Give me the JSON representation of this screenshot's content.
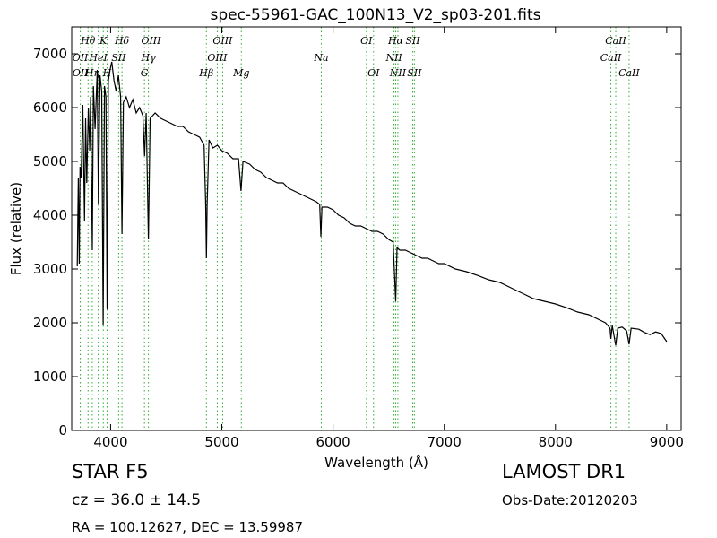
{
  "chart_data": {
    "type": "line",
    "title": "spec-55961-GAC_100N13_V2_sp03-201.fits",
    "xlabel": "Wavelength (Å)",
    "ylabel": "Flux (relative)",
    "xlim": [
      3650,
      9130
    ],
    "ylim": [
      0,
      7500
    ],
    "xticks": [
      4000,
      5000,
      6000,
      7000,
      8000,
      9000
    ],
    "yticks": [
      0,
      1000,
      2000,
      3000,
      4000,
      5000,
      6000,
      7000
    ],
    "series_color": "#000000",
    "line_marker_color": "#33aa33",
    "spectrum": [
      [
        3700,
        3050
      ],
      [
        3710,
        4700
      ],
      [
        3718,
        3100
      ],
      [
        3725,
        4900
      ],
      [
        3735,
        4700
      ],
      [
        3750,
        6050
      ],
      [
        3765,
        3900
      ],
      [
        3775,
        5800
      ],
      [
        3785,
        4600
      ],
      [
        3800,
        6000
      ],
      [
        3812,
        5200
      ],
      [
        3820,
        6200
      ],
      [
        3835,
        3350
      ],
      [
        3845,
        6400
      ],
      [
        3860,
        5600
      ],
      [
        3880,
        6700
      ],
      [
        3890,
        4200
      ],
      [
        3905,
        6600
      ],
      [
        3920,
        6300
      ],
      [
        3933,
        1950
      ],
      [
        3945,
        6400
      ],
      [
        3958,
        6200
      ],
      [
        3968,
        2250
      ],
      [
        3980,
        6500
      ],
      [
        3995,
        6700
      ],
      [
        4010,
        6850
      ],
      [
        4030,
        6500
      ],
      [
        4050,
        6300
      ],
      [
        4070,
        6600
      ],
      [
        4090,
        6200
      ],
      [
        4102,
        3650
      ],
      [
        4115,
        6100
      ],
      [
        4140,
        6200
      ],
      [
        4170,
        6000
      ],
      [
        4200,
        6150
      ],
      [
        4230,
        5900
      ],
      [
        4260,
        6000
      ],
      [
        4290,
        5850
      ],
      [
        4305,
        5100
      ],
      [
        4320,
        5900
      ],
      [
        4340,
        3550
      ],
      [
        4355,
        5800
      ],
      [
        4400,
        5900
      ],
      [
        4450,
        5800
      ],
      [
        4500,
        5750
      ],
      [
        4550,
        5700
      ],
      [
        4600,
        5650
      ],
      [
        4650,
        5650
      ],
      [
        4700,
        5550
      ],
      [
        4750,
        5500
      ],
      [
        4800,
        5450
      ],
      [
        4840,
        5300
      ],
      [
        4855,
        4200
      ],
      [
        4861,
        3200
      ],
      [
        4868,
        4200
      ],
      [
        4885,
        5400
      ],
      [
        4920,
        5250
      ],
      [
        4960,
        5300
      ],
      [
        5000,
        5200
      ],
      [
        5050,
        5150
      ],
      [
        5100,
        5050
      ],
      [
        5150,
        5050
      ],
      [
        5172,
        4450
      ],
      [
        5190,
        5000
      ],
      [
        5250,
        4950
      ],
      [
        5300,
        4850
      ],
      [
        5350,
        4800
      ],
      [
        5400,
        4700
      ],
      [
        5450,
        4650
      ],
      [
        5500,
        4600
      ],
      [
        5550,
        4600
      ],
      [
        5600,
        4500
      ],
      [
        5650,
        4450
      ],
      [
        5700,
        4400
      ],
      [
        5750,
        4350
      ],
      [
        5800,
        4300
      ],
      [
        5850,
        4250
      ],
      [
        5880,
        4200
      ],
      [
        5890,
        3600
      ],
      [
        5900,
        4150
      ],
      [
        5950,
        4150
      ],
      [
        6000,
        4100
      ],
      [
        6050,
        4000
      ],
      [
        6100,
        3950
      ],
      [
        6150,
        3850
      ],
      [
        6200,
        3800
      ],
      [
        6250,
        3800
      ],
      [
        6300,
        3750
      ],
      [
        6350,
        3700
      ],
      [
        6400,
        3700
      ],
      [
        6450,
        3650
      ],
      [
        6500,
        3550
      ],
      [
        6540,
        3500
      ],
      [
        6563,
        2400
      ],
      [
        6575,
        3400
      ],
      [
        6600,
        3350
      ],
      [
        6650,
        3350
      ],
      [
        6700,
        3300
      ],
      [
        6750,
        3250
      ],
      [
        6800,
        3200
      ],
      [
        6850,
        3200
      ],
      [
        6900,
        3150
      ],
      [
        6950,
        3100
      ],
      [
        7000,
        3100
      ],
      [
        7100,
        3000
      ],
      [
        7200,
        2950
      ],
      [
        7300,
        2880
      ],
      [
        7400,
        2800
      ],
      [
        7500,
        2750
      ],
      [
        7600,
        2650
      ],
      [
        7700,
        2550
      ],
      [
        7800,
        2450
      ],
      [
        7900,
        2400
      ],
      [
        8000,
        2350
      ],
      [
        8100,
        2280
      ],
      [
        8200,
        2200
      ],
      [
        8300,
        2150
      ],
      [
        8400,
        2050
      ],
      [
        8450,
        2000
      ],
      [
        8490,
        1900
      ],
      [
        8498,
        1700
      ],
      [
        8510,
        1950
      ],
      [
        8542,
        1580
      ],
      [
        8560,
        1900
      ],
      [
        8600,
        1920
      ],
      [
        8640,
        1850
      ],
      [
        8662,
        1600
      ],
      [
        8680,
        1900
      ],
      [
        8750,
        1880
      ],
      [
        8800,
        1820
      ],
      [
        8850,
        1780
      ],
      [
        8900,
        1830
      ],
      [
        8950,
        1800
      ],
      [
        9000,
        1650
      ]
    ],
    "emission_lines": [
      {
        "name": "OII",
        "wavelength": 3727
      },
      {
        "name": "Hθ",
        "wavelength": 3797
      },
      {
        "name": "Hη",
        "wavelength": 3835
      },
      {
        "name": "HeI",
        "wavelength": 3889
      },
      {
        "name": "SII",
        "wavelength": 4072
      },
      {
        "name": "Hδ",
        "wavelength": 4102
      },
      {
        "name": "Hγ",
        "wavelength": 4340
      },
      {
        "name": "OIII",
        "wavelength": 4363
      },
      {
        "name": "Hβ",
        "wavelength": 4861
      },
      {
        "name": "OIII",
        "wavelength": 4959
      },
      {
        "name": "OIII",
        "wavelength": 5007
      },
      {
        "name": "OI",
        "wavelength": 6300
      },
      {
        "name": "OI",
        "wavelength": 6364
      },
      {
        "name": "NII",
        "wavelength": 6548
      },
      {
        "name": "Hα",
        "wavelength": 6563
      },
      {
        "name": "NII",
        "wavelength": 6583
      },
      {
        "name": "SII",
        "wavelength": 6716
      },
      {
        "name": "SII",
        "wavelength": 6731
      }
    ],
    "absorption_lines": [
      {
        "name": "K",
        "wavelength": 3934
      },
      {
        "name": "H",
        "wavelength": 3968
      },
      {
        "name": "G",
        "wavelength": 4304
      },
      {
        "name": "Mg",
        "wavelength": 5175
      },
      {
        "name": "Na",
        "wavelength": 5894
      },
      {
        "name": "CaII",
        "wavelength": 8498
      },
      {
        "name": "CaII",
        "wavelength": 8542
      },
      {
        "name": "CaII",
        "wavelength": 8662
      }
    ],
    "line_labels": [
      {
        "text": "Hθ",
        "wavelength": 3797,
        "row": 1
      },
      {
        "text": "K",
        "wavelength": 3934,
        "row": 1
      },
      {
        "text": "Hδ",
        "wavelength": 4102,
        "row": 1
      },
      {
        "text": "OIII",
        "wavelength": 4363,
        "row": 1
      },
      {
        "text": "OIII",
        "wavelength": 5007,
        "row": 1
      },
      {
        "text": "OI",
        "wavelength": 6300,
        "row": 1
      },
      {
        "text": "Hα",
        "wavelength": 6563,
        "row": 1
      },
      {
        "text": "SII",
        "wavelength": 6716,
        "row": 1
      },
      {
        "text": "CaII",
        "wavelength": 8542,
        "row": 1
      },
      {
        "text": "OII",
        "wavelength": 3727,
        "row": 2
      },
      {
        "text": "HeI",
        "wavelength": 3889,
        "row": 2
      },
      {
        "text": "SII",
        "wavelength": 4072,
        "row": 2
      },
      {
        "text": "Hγ",
        "wavelength": 4340,
        "row": 2
      },
      {
        "text": "OIII",
        "wavelength": 4959,
        "row": 2
      },
      {
        "text": "Na",
        "wavelength": 5894,
        "row": 2
      },
      {
        "text": "NII",
        "wavelength": 6548,
        "row": 2
      },
      {
        "text": "CaII",
        "wavelength": 8498,
        "row": 2
      },
      {
        "text": "OII",
        "wavelength": 3727,
        "row": 3
      },
      {
        "text": "Hη",
        "wavelength": 3835,
        "row": 3
      },
      {
        "text": "H",
        "wavelength": 3968,
        "row": 3
      },
      {
        "text": "G",
        "wavelength": 4304,
        "row": 3
      },
      {
        "text": "Hβ",
        "wavelength": 4861,
        "row": 3
      },
      {
        "text": "Mg",
        "wavelength": 5175,
        "row": 3
      },
      {
        "text": "OI",
        "wavelength": 6364,
        "row": 3
      },
      {
        "text": "NII",
        "wavelength": 6583,
        "row": 3
      },
      {
        "text": "SII",
        "wavelength": 6731,
        "row": 3
      },
      {
        "text": "CaII",
        "wavelength": 8662,
        "row": 3
      }
    ]
  },
  "info": {
    "object_class": "STAR   F5",
    "survey": "LAMOST DR1",
    "redshift": "cz = 36.0  ± 14.5",
    "obs_date": "Obs-Date:20120203",
    "coords": "RA = 100.12627, DEC = 13.59987"
  }
}
